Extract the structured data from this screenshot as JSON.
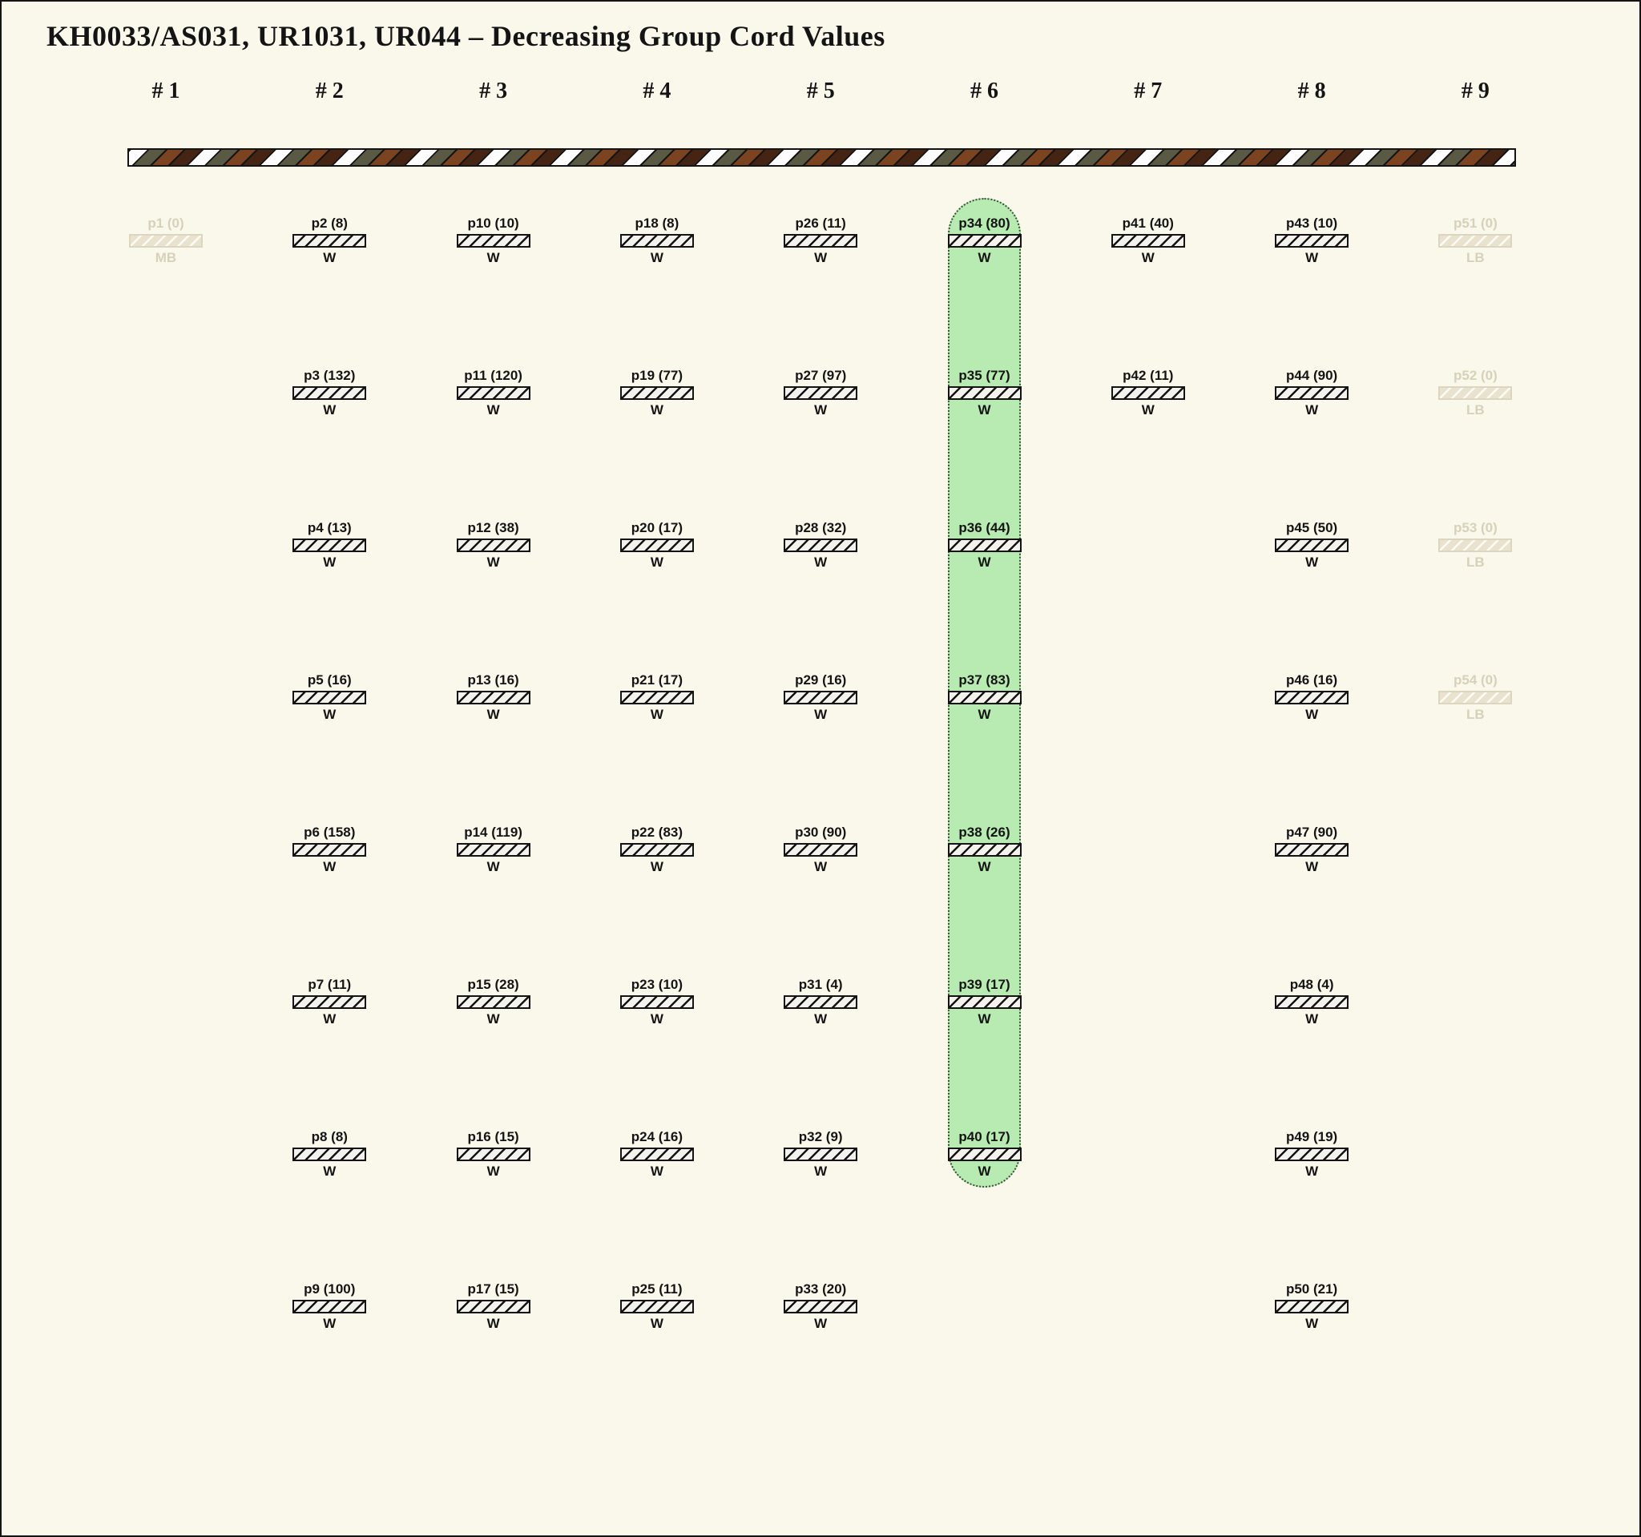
{
  "title": "KH0033/AS031, UR1031, UR044 – Decreasing Group Cord Values",
  "colors": {
    "background": "#faf8eb",
    "ink": "#141414",
    "highlight_fill": "#b7ebb1",
    "highlight_border": "#3a4f3a",
    "dim_text": "#d7d1ba",
    "rope_white": "#fdfdfd",
    "rope_olive": "#5a5943",
    "rope_brown": "#7b431f",
    "rope_dark_brown": "#452413"
  },
  "columns": [
    {
      "label": "# 1",
      "highlighted": false,
      "items": [
        {
          "id": "p1",
          "value": 0,
          "tag": "MB",
          "dim": true
        }
      ]
    },
    {
      "label": "# 2",
      "highlighted": false,
      "items": [
        {
          "id": "p2",
          "value": 8,
          "tag": "W",
          "dim": false
        },
        {
          "id": "p3",
          "value": 132,
          "tag": "W",
          "dim": false
        },
        {
          "id": "p4",
          "value": 13,
          "tag": "W",
          "dim": false
        },
        {
          "id": "p5",
          "value": 16,
          "tag": "W",
          "dim": false
        },
        {
          "id": "p6",
          "value": 158,
          "tag": "W",
          "dim": false
        },
        {
          "id": "p7",
          "value": 11,
          "tag": "W",
          "dim": false
        },
        {
          "id": "p8",
          "value": 8,
          "tag": "W",
          "dim": false
        },
        {
          "id": "p9",
          "value": 100,
          "tag": "W",
          "dim": false
        }
      ]
    },
    {
      "label": "# 3",
      "highlighted": false,
      "items": [
        {
          "id": "p10",
          "value": 10,
          "tag": "W",
          "dim": false
        },
        {
          "id": "p11",
          "value": 120,
          "tag": "W",
          "dim": false
        },
        {
          "id": "p12",
          "value": 38,
          "tag": "W",
          "dim": false
        },
        {
          "id": "p13",
          "value": 16,
          "tag": "W",
          "dim": false
        },
        {
          "id": "p14",
          "value": 119,
          "tag": "W",
          "dim": false
        },
        {
          "id": "p15",
          "value": 28,
          "tag": "W",
          "dim": false
        },
        {
          "id": "p16",
          "value": 15,
          "tag": "W",
          "dim": false
        },
        {
          "id": "p17",
          "value": 15,
          "tag": "W",
          "dim": false
        }
      ]
    },
    {
      "label": "# 4",
      "highlighted": false,
      "items": [
        {
          "id": "p18",
          "value": 8,
          "tag": "W",
          "dim": false
        },
        {
          "id": "p19",
          "value": 77,
          "tag": "W",
          "dim": false
        },
        {
          "id": "p20",
          "value": 17,
          "tag": "W",
          "dim": false
        },
        {
          "id": "p21",
          "value": 17,
          "tag": "W",
          "dim": false
        },
        {
          "id": "p22",
          "value": 83,
          "tag": "W",
          "dim": false
        },
        {
          "id": "p23",
          "value": 10,
          "tag": "W",
          "dim": false
        },
        {
          "id": "p24",
          "value": 16,
          "tag": "W",
          "dim": false
        },
        {
          "id": "p25",
          "value": 11,
          "tag": "W",
          "dim": false
        }
      ]
    },
    {
      "label": "# 5",
      "highlighted": false,
      "items": [
        {
          "id": "p26",
          "value": 11,
          "tag": "W",
          "dim": false
        },
        {
          "id": "p27",
          "value": 97,
          "tag": "W",
          "dim": false
        },
        {
          "id": "p28",
          "value": 32,
          "tag": "W",
          "dim": false
        },
        {
          "id": "p29",
          "value": 16,
          "tag": "W",
          "dim": false
        },
        {
          "id": "p30",
          "value": 90,
          "tag": "W",
          "dim": false
        },
        {
          "id": "p31",
          "value": 4,
          "tag": "W",
          "dim": false
        },
        {
          "id": "p32",
          "value": 9,
          "tag": "W",
          "dim": false
        },
        {
          "id": "p33",
          "value": 20,
          "tag": "W",
          "dim": false
        }
      ]
    },
    {
      "label": "# 6",
      "highlighted": true,
      "items": [
        {
          "id": "p34",
          "value": 80,
          "tag": "W",
          "dim": false
        },
        {
          "id": "p35",
          "value": 77,
          "tag": "W",
          "dim": false
        },
        {
          "id": "p36",
          "value": 44,
          "tag": "W",
          "dim": false
        },
        {
          "id": "p37",
          "value": 83,
          "tag": "W",
          "dim": false
        },
        {
          "id": "p38",
          "value": 26,
          "tag": "W",
          "dim": false
        },
        {
          "id": "p39",
          "value": 17,
          "tag": "W",
          "dim": false
        },
        {
          "id": "p40",
          "value": 17,
          "tag": "W",
          "dim": false
        }
      ]
    },
    {
      "label": "# 7",
      "highlighted": false,
      "items": [
        {
          "id": "p41",
          "value": 40,
          "tag": "W",
          "dim": false
        },
        {
          "id": "p42",
          "value": 11,
          "tag": "W",
          "dim": false
        }
      ]
    },
    {
      "label": "# 8",
      "highlighted": false,
      "items": [
        {
          "id": "p43",
          "value": 10,
          "tag": "W",
          "dim": false
        },
        {
          "id": "p44",
          "value": 90,
          "tag": "W",
          "dim": false
        },
        {
          "id": "p45",
          "value": 50,
          "tag": "W",
          "dim": false
        },
        {
          "id": "p46",
          "value": 16,
          "tag": "W",
          "dim": false
        },
        {
          "id": "p47",
          "value": 90,
          "tag": "W",
          "dim": false
        },
        {
          "id": "p48",
          "value": 4,
          "tag": "W",
          "dim": false
        },
        {
          "id": "p49",
          "value": 19,
          "tag": "W",
          "dim": false
        },
        {
          "id": "p50",
          "value": 21,
          "tag": "W",
          "dim": false
        }
      ]
    },
    {
      "label": "# 9",
      "highlighted": false,
      "items": [
        {
          "id": "p51",
          "value": 0,
          "tag": "LB",
          "dim": true
        },
        {
          "id": "p52",
          "value": 0,
          "tag": "LB",
          "dim": true
        },
        {
          "id": "p53",
          "value": 0,
          "tag": "LB",
          "dim": true
        },
        {
          "id": "p54",
          "value": 0,
          "tag": "LB",
          "dim": true
        }
      ]
    }
  ]
}
